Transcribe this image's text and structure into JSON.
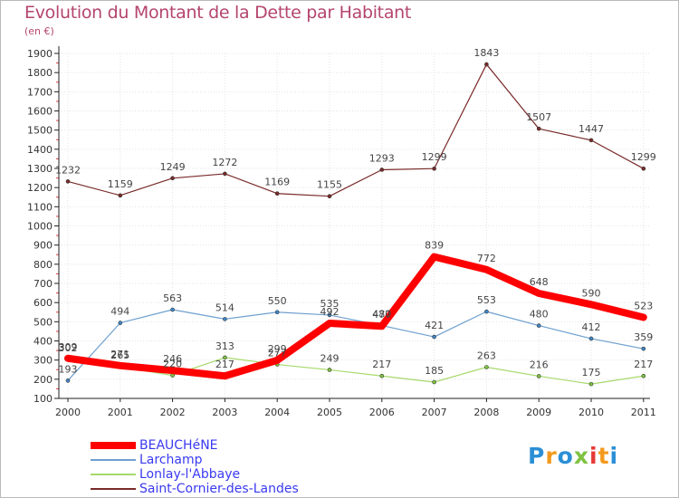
{
  "title": "Evolution du Montant de la Dette par Habitant",
  "subtitle": "(en €)",
  "logo": {
    "text": "Proxiti",
    "colors": [
      "#2b8fd6",
      "#f39a1e",
      "#2b8fd6",
      "#7ec242",
      "#e53935",
      "#f39a1e",
      "#2b8fd6"
    ]
  },
  "chart_data": {
    "type": "line",
    "x": [
      "2000",
      "2001",
      "2002",
      "2003",
      "2004",
      "2005",
      "2006",
      "2007",
      "2008",
      "2009",
      "2010",
      "2011"
    ],
    "ylim": [
      100,
      1900
    ],
    "yticks": [
      100,
      200,
      300,
      400,
      500,
      600,
      700,
      800,
      900,
      1000,
      1100,
      1200,
      1300,
      1400,
      1500,
      1600,
      1700,
      1800,
      1900
    ],
    "legend_position": "bottom-left",
    "series": [
      {
        "name": "Saint-Cornier-des-Landes",
        "color": "#7a2a2a",
        "width": 1.2,
        "marker": 4,
        "values": [
          1232,
          1159,
          1249,
          1272,
          1169,
          1155,
          1293,
          1299,
          1843,
          1507,
          1447,
          1299
        ]
      },
      {
        "name": "Lonlay-l'Abbaye",
        "color": "#a6d96a",
        "markerColor": "#7ec242",
        "width": 1.2,
        "marker": 4,
        "values": [
          302,
          265,
          220,
          313,
          277,
          249,
          217,
          185,
          263,
          216,
          175,
          217
        ]
      },
      {
        "name": "Larchamp",
        "color": "#6fa0cf",
        "markerColor": "#3f86c8",
        "width": 1.2,
        "marker": 4,
        "values": [
          193,
          494,
          563,
          514,
          550,
          535,
          480,
          421,
          553,
          480,
          412,
          359
        ]
      },
      {
        "name": "BEAUCHéNE",
        "color": "#ff0000",
        "width": 8,
        "marker": 7,
        "values": [
          309,
          271,
          246,
          217,
          299,
          492,
          477,
          839,
          772,
          648,
          590,
          523
        ]
      }
    ]
  }
}
